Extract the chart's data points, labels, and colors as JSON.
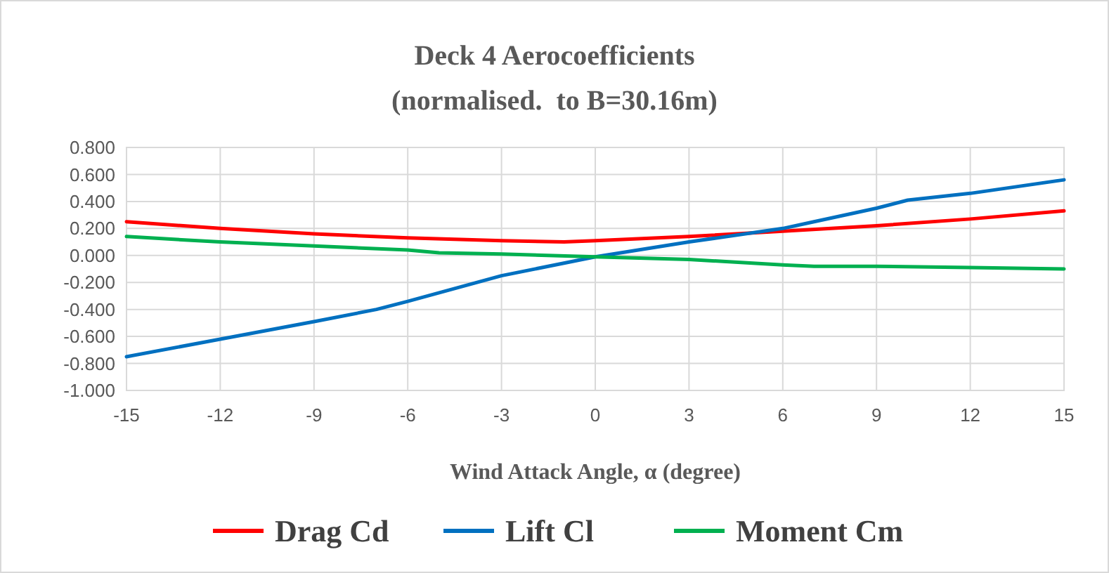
{
  "chart_data": {
    "type": "line",
    "title": "Deck 4 Aerocoefficients",
    "subtitle": "(normalised.  to B=30.16m)",
    "xlabel": "Wind Attack Angle, α (degree)",
    "xlim": [
      -15,
      15
    ],
    "xticks": [
      -15,
      -12,
      -9,
      -6,
      -3,
      0,
      3,
      6,
      9,
      12,
      15
    ],
    "ylim": [
      -1,
      0.8
    ],
    "yticks": [
      {
        "value": -1,
        "label": "-1.000"
      },
      {
        "value": -0.8,
        "label": "-0.800"
      },
      {
        "value": -0.6,
        "label": "-0.600"
      },
      {
        "value": -0.4,
        "label": "-0.400"
      },
      {
        "value": -0.2,
        "label": "-0.200"
      },
      {
        "value": 0,
        "label": "0.000"
      },
      {
        "value": 0.2,
        "label": "0.200"
      },
      {
        "value": 0.4,
        "label": "0.400"
      },
      {
        "value": 0.6,
        "label": "0.600"
      },
      {
        "value": 0.8,
        "label": "0.800"
      }
    ],
    "grid": true,
    "legend": "bottom",
    "marker": "none",
    "line_style": "solid",
    "series": [
      {
        "name": "Drag Cd",
        "color": "#ff0000",
        "x": [
          -15,
          -12,
          -9,
          -6,
          -3,
          -1,
          0,
          3,
          6,
          9,
          12,
          15
        ],
        "values": [
          0.25,
          0.2,
          0.16,
          0.13,
          0.11,
          0.1,
          0.11,
          0.14,
          0.18,
          0.22,
          0.27,
          0.33
        ]
      },
      {
        "name": "Lift Cl",
        "color": "#0070c0",
        "x": [
          -15,
          -12,
          -9,
          -7,
          -6,
          -3,
          0,
          3,
          6,
          7,
          9,
          10,
          12,
          15
        ],
        "values": [
          -0.75,
          -0.62,
          -0.49,
          -0.4,
          -0.34,
          -0.15,
          -0.01,
          0.1,
          0.2,
          0.25,
          0.35,
          0.41,
          0.46,
          0.56
        ]
      },
      {
        "name": "Moment Cm",
        "color": "#00b050",
        "x": [
          -15,
          -12,
          -9,
          -6,
          -5,
          -3,
          0,
          3,
          6,
          7,
          9,
          12,
          15
        ],
        "values": [
          0.14,
          0.1,
          0.07,
          0.04,
          0.02,
          0.01,
          -0.01,
          -0.03,
          -0.07,
          -0.08,
          -0.08,
          -0.09,
          -0.1
        ]
      }
    ]
  }
}
